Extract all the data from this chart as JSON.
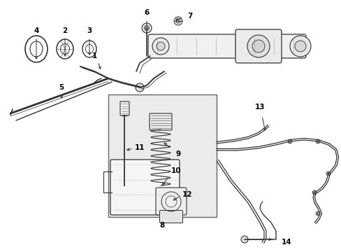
{
  "bg_color": "#ffffff",
  "line_color": "#333333",
  "label_color": "#000000",
  "box_bg": "#ebebeb",
  "box_border": "#666666",
  "figsize": [
    4.89,
    3.6
  ],
  "dpi": 100
}
